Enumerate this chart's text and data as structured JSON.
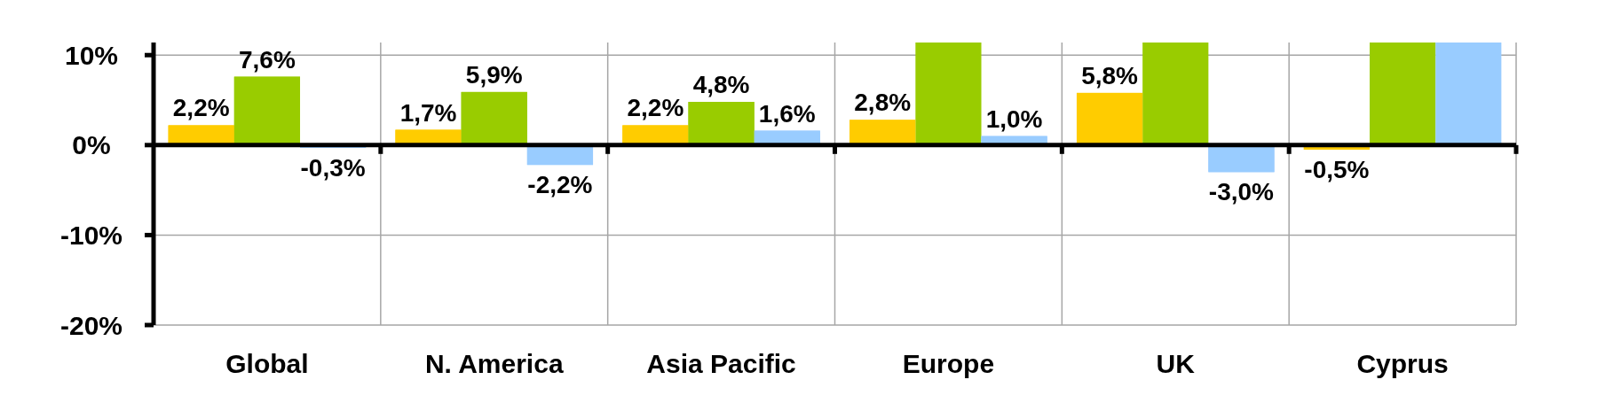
{
  "chart_data": {
    "type": "bar",
    "categories": [
      "Global",
      "N. America",
      "Asia Pacific",
      "Europe",
      "UK",
      "Cyprus"
    ],
    "series": [
      {
        "color": "#ffcc00",
        "values": [
          2.2,
          1.7,
          2.2,
          2.8,
          5.8,
          -0.5
        ],
        "value_labels": [
          "2,2%",
          "1,7%",
          "2,2%",
          "2,8%",
          "5,8%",
          "-0,5%"
        ]
      },
      {
        "color": "#99cc00",
        "values": [
          7.6,
          5.9,
          4.8,
          11.4,
          11.4,
          11.4
        ],
        "value_labels": [
          "7,6%",
          "5,9%",
          "4,8%",
          null,
          null,
          null
        ]
      },
      {
        "color": "#99ccff",
        "values": [
          -0.3,
          -2.2,
          1.6,
          1.0,
          -3.0,
          11.4
        ],
        "value_labels": [
          "-0,3%",
          "-2,2%",
          "1,6%",
          "1,0%",
          "-3,0%",
          null
        ]
      }
    ],
    "ylim": [
      -20,
      11.4
    ],
    "yticks": [
      {
        "value": -20,
        "label": "-20%"
      },
      {
        "value": -10,
        "label": "-10%"
      },
      {
        "value": 0,
        "label": "0%"
      },
      {
        "value": 10,
        "label": "10%"
      }
    ],
    "grid": true
  }
}
